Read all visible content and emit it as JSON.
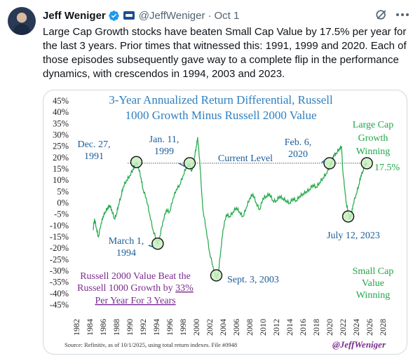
{
  "tweet": {
    "author_name": "Jeff Weniger",
    "handle": "@JeffWeniger",
    "separator": "·",
    "date": "Oct 1",
    "text": "Large Cap Growth stocks have beaten Small Cap Value by 17.5% per year for the last 3 years. Prior times that witnessed this: 1991, 1999 and 2020. Each of those episodes subsequently gave way to a complete flip in the performance dynamics, with crescendos in 1994, 2003 and 2023."
  },
  "icons": {
    "verified": "verified-badge-icon",
    "affiliate": "affiliate-badge-icon",
    "grok": "grok-icon",
    "more": "more-icon"
  },
  "colors": {
    "line": "#1fa847",
    "title": "#2e7fc1",
    "annotation": "#1b5c9a",
    "marker_fill": "#c9efc0",
    "green_text": "#1fa847",
    "purple_text": "#7a2b8f"
  },
  "chart_data": {
    "type": "line",
    "title": "3-Year Annualized Return Differential, Russell\n1000 Growth Minus Russell 2000 Value",
    "xlabel": "",
    "ylabel": "",
    "xlim": [
      1982,
      2028
    ],
    "ylim": [
      -45,
      45
    ],
    "y_ticks": [
      "45%",
      "40%",
      "35%",
      "30%",
      "25%",
      "20%",
      "15%",
      "10%",
      "5%",
      "0%",
      "-5%",
      "-10%",
      "-15%",
      "-20%",
      "-25%",
      "-30%",
      "-35%",
      "-40%",
      "-45%"
    ],
    "x_ticks": [
      "1982",
      "1984",
      "1986",
      "1988",
      "1990",
      "1992",
      "1994",
      "1996",
      "1998",
      "2000",
      "2002",
      "2004",
      "2006",
      "2008",
      "2010",
      "2012",
      "2014",
      "2016",
      "2018",
      "2020",
      "2022",
      "2024",
      "2026",
      "2028"
    ],
    "grid": false,
    "series": [
      {
        "x": [
          1984.5,
          1984.7,
          1985.0,
          1985.3,
          1985.7,
          1986.0,
          1986.3,
          1986.7,
          1987.0,
          1987.3,
          1987.7,
          1988.0,
          1988.3,
          1988.7,
          1989.0,
          1989.5,
          1990.0,
          1990.5,
          1990.9,
          1991.0,
          1991.3,
          1991.7,
          1992.0,
          1992.5,
          1993.0,
          1993.5,
          1994.0,
          1994.2,
          1994.5,
          1995.0,
          1995.5,
          1996.0,
          1996.5,
          1997.0,
          1997.5,
          1998.0,
          1998.5,
          1999.0,
          1999.3,
          1999.7,
          2000.0,
          2000.2,
          2000.5,
          2000.8,
          2001.0,
          2001.5,
          2002.0,
          2002.5,
          2003.0,
          2003.3,
          2003.7,
          2004.0,
          2004.5,
          2005.0,
          2005.5,
          2006.0,
          2006.5,
          2007.0,
          2007.5,
          2008.0,
          2008.5,
          2009.0,
          2009.5,
          2010.0,
          2010.5,
          2011.0,
          2011.5,
          2012.0,
          2012.5,
          2013.0,
          2013.5,
          2014.0,
          2014.5,
          2015.0,
          2015.5,
          2016.0,
          2016.5,
          2017.0,
          2017.5,
          2018.0,
          2018.5,
          2019.0,
          2019.5,
          2020.0,
          2020.3,
          2020.6,
          2021.0,
          2021.5,
          2021.8,
          2022.0,
          2022.3,
          2022.5,
          2022.8,
          2023.0,
          2023.3,
          2023.5,
          2024.0,
          2024.4,
          2024.7,
          2025.0,
          2025.3,
          2025.6
        ],
        "y": [
          -12,
          -7,
          -11,
          -15,
          -9,
          -6,
          -4,
          -2,
          -1,
          -3,
          -7,
          -5,
          -1,
          3,
          7,
          10,
          12,
          15,
          17,
          18,
          16,
          11,
          6,
          2,
          -5,
          -12,
          -16,
          -18,
          -15,
          -8,
          -3,
          -4,
          2,
          6,
          8,
          12,
          16,
          17,
          14,
          20,
          25,
          29,
          19,
          5,
          -3,
          -12,
          -22,
          -28,
          -33,
          -31,
          -20,
          -12,
          -5,
          -6,
          -4,
          -2,
          -4,
          -6,
          -2,
          2,
          4,
          0,
          -3,
          2,
          3,
          4,
          1,
          1,
          3,
          2,
          1,
          0,
          2,
          1,
          3,
          4,
          5,
          6,
          8,
          7,
          9,
          11,
          13,
          16,
          18,
          21,
          22,
          24,
          25,
          14,
          6,
          0,
          -4,
          -7,
          -5,
          -1,
          4,
          8,
          12,
          14,
          17,
          17.5
        ]
      }
    ],
    "annotations": [
      {
        "label": "Dec. 27,\n1991",
        "x": 1991.0,
        "y": 18
      },
      {
        "label": "Jan. 11,\n1999",
        "x": 1999.0,
        "y": 17.5
      },
      {
        "label": "Feb. 6,\n2020",
        "x": 2020.0,
        "y": 17.5
      },
      {
        "label": "March 1,\n1994",
        "x": 1994.2,
        "y": -18
      },
      {
        "label": "Sept. 3, 2003",
        "x": 2003.0,
        "y": -32
      },
      {
        "label": "July 12, 2023",
        "x": 2022.8,
        "y": -6
      },
      {
        "label": "17.5%",
        "x": 2025.6,
        "y": 17.5
      }
    ],
    "reference_line": {
      "label": "Current Level",
      "y": 17.5
    },
    "text_notes": {
      "large_cap": "Large Cap\nGrowth\nWinning",
      "small_cap": "Small Cap\nValue\nWinning",
      "beat_line1": "Russell 2000 Value Beat the",
      "beat_line2_a": "Russell 1000 Growth by ",
      "beat_line2_b": "33%",
      "beat_line3": "Per Year For 3 Years",
      "source": "Source: Refinitiv, as of 10/1/2025, using total return indexes. File #0948",
      "credit": "@JeffWeniger"
    }
  }
}
